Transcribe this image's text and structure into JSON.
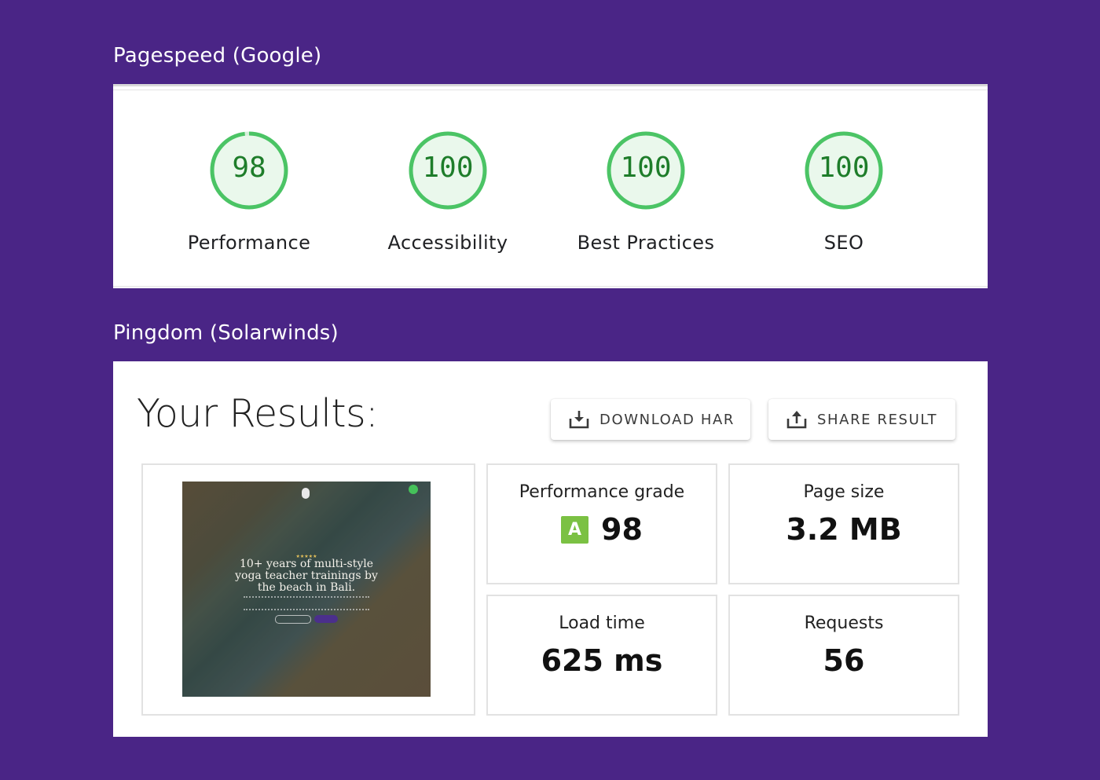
{
  "pagespeed": {
    "title": "Pagespeed (Google)",
    "gauges": [
      {
        "score": "98",
        "label": "Performance",
        "fraction": 0.98
      },
      {
        "score": "100",
        "label": "Accessibility",
        "fraction": 1.0
      },
      {
        "score": "100",
        "label": "Best Practices",
        "fraction": 1.0
      },
      {
        "score": "100",
        "label": "SEO",
        "fraction": 1.0
      }
    ],
    "colors": {
      "ring": "#4bc465",
      "fill": "#eaf8ec",
      "score_text": "#1e7d2a"
    }
  },
  "pingdom": {
    "title": "Pingdom (Solarwinds)",
    "heading": "Your Results:",
    "buttons": {
      "download_label": "DOWNLOAD HAR",
      "share_label": "SHARE RESULT"
    },
    "thumbnail": {
      "headline": "10+ years of multi-style yoga teacher trainings by the beach in Bali.",
      "stars": "★★★★★"
    },
    "metrics": {
      "grade": {
        "label": "Performance grade",
        "letter": "A",
        "value": "98"
      },
      "page_size": {
        "label": "Page size",
        "value": "3.2 MB"
      },
      "load_time": {
        "label": "Load time",
        "value": "625 ms"
      },
      "requests": {
        "label": "Requests",
        "value": "56"
      }
    },
    "colors": {
      "grade_badge": "#7bc143"
    }
  },
  "colors": {
    "background": "#4a2586"
  }
}
